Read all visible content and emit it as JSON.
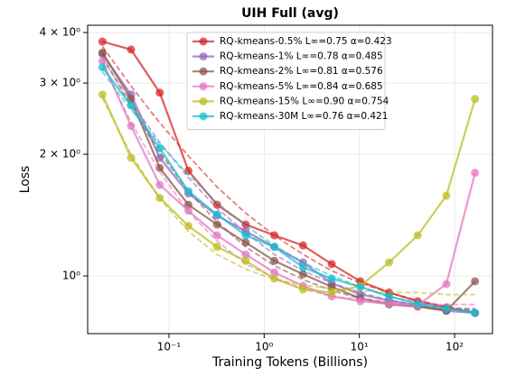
{
  "chart_data": {
    "type": "line",
    "title": "UIH Full (avg)",
    "xlabel": "Training Tokens (Billions)",
    "ylabel": "Loss",
    "log_x": true,
    "log_y": true,
    "grid": true,
    "legend": "upper center",
    "x": [
      0.02,
      0.04,
      0.08,
      0.16,
      0.32,
      0.64,
      1.28,
      2.56,
      5.12,
      10.24,
      20.48,
      40.96,
      81.92,
      163.84
    ],
    "xlim": [
      0.014,
      250
    ],
    "ylim": [
      0.72,
      4.17
    ],
    "xticks": [
      {
        "value": 0.1,
        "label": "10⁻¹"
      },
      {
        "value": 1,
        "label": "10⁰"
      },
      {
        "value": 10,
        "label": "10¹"
      },
      {
        "value": 100,
        "label": "10²"
      }
    ],
    "yticks": [
      {
        "value": 1,
        "label": "10⁰"
      },
      {
        "value": 2,
        "label": "2 × 10⁰"
      },
      {
        "value": 3,
        "label": "3 × 10⁰"
      },
      {
        "value": 4,
        "label": "4 × 10⁰"
      }
    ],
    "series": [
      {
        "name": "RQ-kmeans-0.5% L∞=0.75 α=0.423",
        "color": "#d62728",
        "values": [
          3.8,
          3.63,
          2.84,
          1.82,
          1.5,
          1.34,
          1.26,
          1.19,
          1.07,
          0.97,
          0.91,
          0.866,
          0.836,
          0.81
        ],
        "fit_values": [
          3.7,
          2.95,
          2.39,
          1.98,
          1.66,
          1.43,
          1.26,
          1.13,
          1.03,
          0.96,
          0.91,
          0.87,
          0.84,
          0.82
        ]
      },
      {
        "name": "RQ-kmeans-1% L∞=0.78 α=0.485",
        "color": "#9467bd",
        "values": [
          3.54,
          2.81,
          1.96,
          1.6,
          1.41,
          1.29,
          1.18,
          1.08,
          0.96,
          0.9,
          0.87,
          0.845,
          0.82,
          0.81
        ],
        "fit_values": [
          3.45,
          2.69,
          2.14,
          1.75,
          1.47,
          1.28,
          1.13,
          1.03,
          0.96,
          0.91,
          0.87,
          0.85,
          0.83,
          0.81
        ]
      },
      {
        "name": "RQ-kmeans-2% L∞=0.81 α=0.576",
        "color": "#8c564b",
        "values": [
          3.57,
          2.74,
          1.85,
          1.5,
          1.34,
          1.21,
          1.09,
          1.01,
          0.94,
          0.88,
          0.85,
          0.84,
          0.82,
          0.97
        ],
        "fit_values": [
          3.5,
          2.62,
          2.02,
          1.62,
          1.36,
          1.18,
          1.06,
          0.98,
          0.92,
          0.88,
          0.86,
          0.84,
          0.83,
          0.83
        ]
      },
      {
        "name": "RQ-kmeans-5% L∞=0.84 α=0.685",
        "color": "#e377c2",
        "values": [
          3.4,
          2.35,
          1.68,
          1.45,
          1.26,
          1.13,
          1.02,
          0.945,
          0.89,
          0.866,
          0.853,
          0.845,
          0.955,
          1.8
        ],
        "fit_values": [
          3.35,
          2.4,
          1.81,
          1.44,
          1.22,
          1.07,
          0.99,
          0.93,
          0.89,
          0.875,
          0.86,
          0.85,
          0.85,
          0.85
        ]
      },
      {
        "name": "RQ-kmeans-15% L∞=0.90 α=0.754",
        "color": "#bcbd22",
        "values": [
          2.81,
          1.96,
          1.56,
          1.33,
          1.18,
          1.09,
          0.985,
          0.926,
          0.91,
          0.945,
          1.08,
          1.26,
          1.58,
          2.74
        ],
        "fit_values": [
          2.75,
          2.0,
          1.55,
          1.29,
          1.13,
          1.04,
          0.98,
          0.95,
          0.93,
          0.92,
          0.91,
          0.91,
          0.9,
          0.9
        ]
      },
      {
        "name": "RQ-kmeans-30M L∞=0.76 α=0.421",
        "color": "#17becf",
        "values": [
          3.28,
          2.64,
          2.07,
          1.62,
          1.42,
          1.26,
          1.18,
          1.05,
          0.985,
          0.94,
          0.89,
          0.853,
          0.83,
          0.81
        ],
        "fit_values": [
          3.2,
          2.58,
          2.12,
          1.78,
          1.52,
          1.33,
          1.19,
          1.08,
          1.0,
          0.94,
          0.89,
          0.86,
          0.83,
          0.82
        ]
      }
    ]
  }
}
